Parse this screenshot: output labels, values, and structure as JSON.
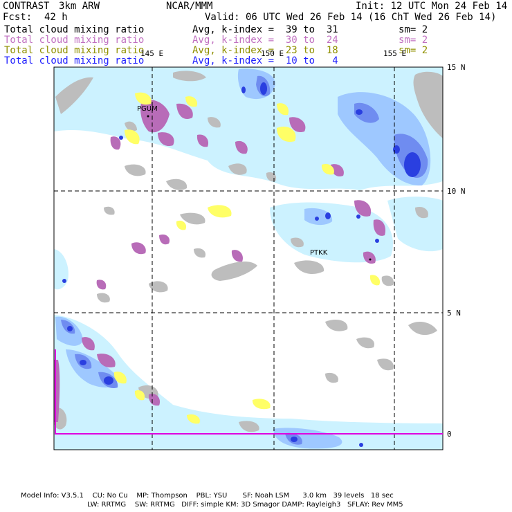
{
  "header": {
    "project": "CONTRAST",
    "model": "3km ARW",
    "org": "NCAR/MMM",
    "init": "Init: 12 UTC Mon 24 Feb 14",
    "fcst_label": "Fcst:",
    "fcst_value": "42 h",
    "valid": "Valid: 06 UTC Wed 26 Feb 14 (16 ChT Wed 26 Feb 14)"
  },
  "fields": [
    {
      "name": "Total cloud mixing ratio",
      "range": "Avg, k-index =  39 to  31",
      "sm": "sm= 2",
      "color": "#000000"
    },
    {
      "name": "Total cloud mixing ratio",
      "range": "Avg, k-index =  30 to  24",
      "sm": "sm= 2",
      "color": "#c070c0"
    },
    {
      "name": "Total cloud mixing ratio",
      "range": "Avg, k-index =  23 to  18",
      "sm": "sm= 2",
      "color": "#909000"
    },
    {
      "name": "Total cloud mixing ratio",
      "range": "Avg, k-index =  10 to   4",
      "sm": "",
      "color": "#2020ff"
    }
  ],
  "map": {
    "lon_labels": [
      "145 E",
      "150 E",
      "155 E"
    ],
    "lat_labels": [
      "15 N",
      "10 N",
      "5 N",
      "0"
    ],
    "stations": [
      "PGUM",
      "PTKK"
    ],
    "colors": {
      "land": "#bdbdbd",
      "cloud_light": "#ccf2ff",
      "cloud_mid": "#9ec8ff",
      "cloud_blue": "#6f8cf0",
      "cloud_deep": "#2a3fe0",
      "mid_purple": "#b86cb8",
      "low_yellow": "#ffff66",
      "boundary": "#e000e0"
    }
  },
  "footer": {
    "line1": "Model Info: V3.5.1    CU: No Cu    MP: Thompson    PBL: YSU       SF: Noah LSM      3.0 km   39 levels   18 sec",
    "line2": "LW: RRTMG    SW: RRTMG   DIFF: simple KM: 3D Smagor DAMP: Rayleigh3   SFLAY: Rev MM5"
  }
}
